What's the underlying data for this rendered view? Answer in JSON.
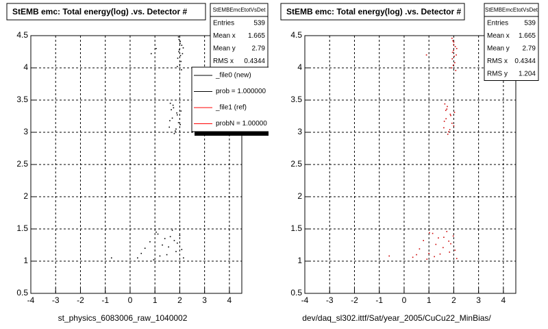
{
  "chart_data": [
    {
      "type": "scatter",
      "title": "StEMB emc: Total energy(log) .vs. Detector #",
      "x_label": "st_physics_6083006_raw_1040002",
      "color": "#000000",
      "xlim": [
        -4,
        4.5
      ],
      "ylim": [
        0.5,
        4.5
      ],
      "xticks": [
        -4,
        -3,
        -2,
        -1,
        0,
        1,
        2,
        3,
        4
      ],
      "yticks": [
        0.5,
        1,
        1.5,
        2,
        2.5,
        3,
        3.5,
        4,
        4.5
      ],
      "grid": true,
      "stats": {
        "name": "StEMBEmcEtotVsDet",
        "rows": [
          {
            "label": "Entries",
            "value": 539
          },
          {
            "label": "Mean x",
            "value": 1.665
          },
          {
            "label": "Mean y",
            "value": 2.79
          },
          {
            "label": "RMS x",
            "value": 0.4344
          }
        ]
      },
      "legend": [
        {
          "label": "_file0 (new)",
          "color": "#000000"
        },
        {
          "label": "prob = 1.000000",
          "color": "#000000"
        },
        {
          "label": "_file1 (ref)",
          "color": "#ff0000"
        },
        {
          "label": "probN = 1.00000",
          "color": "#ff0000"
        }
      ],
      "x": [
        1.95,
        2.02,
        2.08,
        1.98,
        2.11,
        1.92,
        2.05,
        2.0,
        2.14,
        1.97,
        2.03,
        1.9,
        2.07,
        2.01,
        1.96,
        1.62,
        1.75,
        1.88,
        1.7,
        1.95,
        1.58,
        1.82,
        2.02,
        1.66,
        1.78,
        1.9,
        1.73,
        1.85,
        1.6,
        2.05,
        0.45,
        0.8,
        1.05,
        1.2,
        1.4,
        1.55,
        1.7,
        1.85,
        2.0,
        2.15,
        0.95,
        1.3,
        1.62,
        1.9,
        0.6,
        1.12,
        1.48,
        1.78,
        2.08,
        0.3,
        0.85,
        -0.75,
        1.05
      ],
      "y": [
        4.48,
        4.41,
        4.35,
        4.28,
        4.22,
        4.15,
        4.1,
        4.05,
        4.31,
        4.44,
        4.19,
        4.02,
        3.97,
        4.38,
        4.25,
        3.45,
        3.38,
        3.3,
        3.22,
        3.15,
        3.08,
        3.02,
        3.12,
        3.35,
        2.98,
        3.27,
        3.42,
        3.05,
        3.18,
        3.33,
        1.12,
        1.3,
        1.45,
        1.08,
        1.35,
        1.22,
        1.48,
        1.15,
        1.4,
        1.05,
        1.02,
        1.25,
        1.38,
        1.28,
        1.2,
        1.42,
        1.1,
        1.32,
        1.18,
        1.05,
        4.22,
        1.05,
        4.3
      ]
    },
    {
      "type": "scatter",
      "title": "StEMB emc: Total energy(log) .vs. Detector #",
      "x_label": "dev/daq_sl302.ittf/Sat/year_2005/CuCu22_MinBias/",
      "color": "#cc0000",
      "xlim": [
        -4,
        4.5
      ],
      "ylim": [
        0.5,
        4.5
      ],
      "xticks": [
        -4,
        -3,
        -2,
        -1,
        0,
        1,
        2,
        3,
        4
      ],
      "yticks": [
        0.5,
        1,
        1.5,
        2,
        2.5,
        3,
        3.5,
        4,
        4.5
      ],
      "grid": true,
      "stats": {
        "name": "StEMBEmcEtotVsDet",
        "rows": [
          {
            "label": "Entries",
            "value": 539
          },
          {
            "label": "Mean x",
            "value": 1.665
          },
          {
            "label": "Mean y",
            "value": 2.79
          },
          {
            "label": "RMS x",
            "value": 0.4344
          },
          {
            "label": "RMS y",
            "value": 1.204
          }
        ]
      },
      "x": [
        1.93,
        2.0,
        2.06,
        1.99,
        2.1,
        1.94,
        2.04,
        1.98,
        2.12,
        1.96,
        2.02,
        1.91,
        2.08,
        2.0,
        1.95,
        1.64,
        1.72,
        1.86,
        1.69,
        1.93,
        1.6,
        1.8,
        2.0,
        1.68,
        1.76,
        1.88,
        1.74,
        1.84,
        1.62,
        2.03,
        0.5,
        0.78,
        1.02,
        1.22,
        1.38,
        1.57,
        1.72,
        1.83,
        1.98,
        2.12,
        0.92,
        1.28,
        1.6,
        1.88,
        0.62,
        1.15,
        1.45,
        1.8,
        2.05,
        0.35,
        1.0,
        -0.6,
        0.9
      ],
      "y": [
        4.46,
        4.4,
        4.33,
        4.27,
        4.2,
        4.14,
        4.08,
        4.04,
        4.3,
        4.42,
        4.18,
        4.0,
        3.96,
        4.36,
        4.24,
        3.44,
        3.36,
        3.28,
        3.21,
        3.14,
        3.07,
        3.01,
        3.1,
        3.34,
        2.97,
        3.26,
        3.4,
        3.04,
        3.17,
        3.31,
        1.1,
        1.32,
        1.44,
        1.07,
        1.36,
        1.21,
        1.46,
        1.14,
        1.39,
        1.04,
        1.03,
        1.26,
        1.37,
        1.27,
        1.19,
        1.43,
        1.11,
        1.31,
        1.17,
        1.06,
        1.12,
        1.08,
        4.2
      ]
    }
  ]
}
